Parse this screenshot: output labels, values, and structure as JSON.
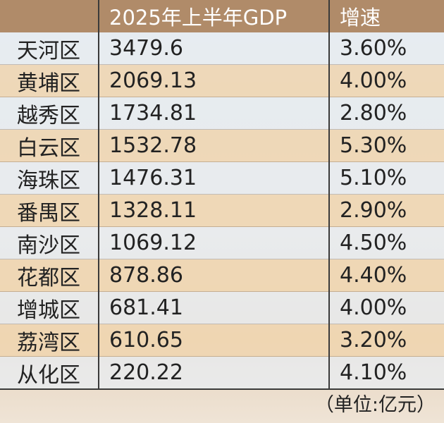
{
  "table": {
    "columns": [
      "2025年上半年GDP",
      "增速"
    ],
    "rows": [
      [
        "天河区",
        "3479.6",
        "3.60%"
      ],
      [
        "黄埔区",
        "2069.13",
        "4.00%"
      ],
      [
        "越秀区",
        "1734.81",
        "2.80%"
      ],
      [
        "白云区",
        "1532.78",
        "5.30%"
      ],
      [
        "海珠区",
        "1476.31",
        "5.10%"
      ],
      [
        "番禺区",
        "1328.11",
        "2.90%"
      ],
      [
        "南沙区",
        "1069.12",
        "4.50%"
      ],
      [
        "花都区",
        "878.86",
        "4.40%"
      ],
      [
        "增城区",
        "681.41",
        "4.00%"
      ],
      [
        "荔湾区",
        "610.65",
        "3.20%"
      ],
      [
        "从化区",
        "220.22",
        "4.10%"
      ]
    ],
    "footer": "（单位:亿元）"
  }
}
